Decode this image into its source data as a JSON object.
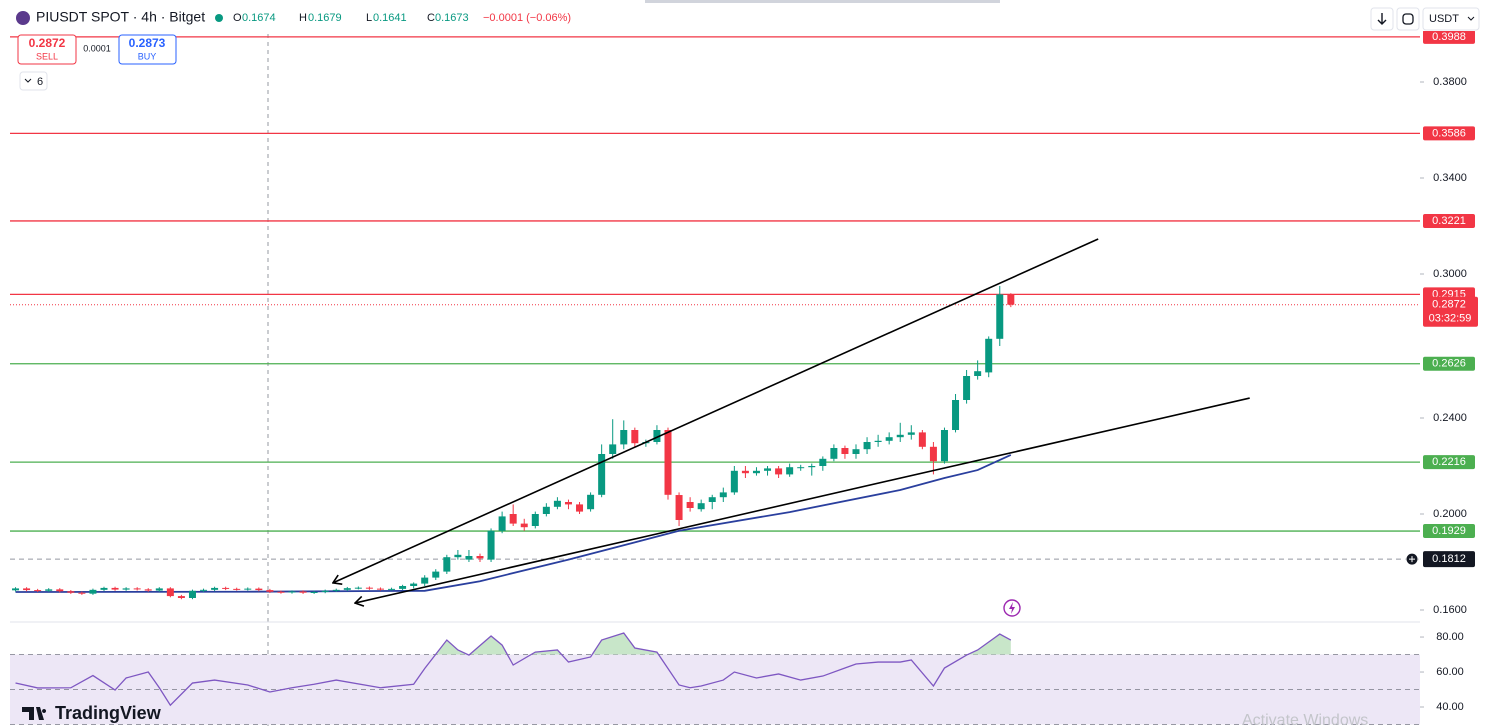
{
  "header": {
    "symbol": "PIUSDT SPOT · 4h · Bitget",
    "o_label": "O",
    "open": 0.1674,
    "h_label": "H",
    "high": 0.1679,
    "l_label": "L",
    "low": 0.1641,
    "c_label": "C",
    "close": 0.1673,
    "change": "−0.0001 (−0.06%)"
  },
  "trade": {
    "sell_price": 0.2872,
    "sell": "SELL",
    "spread": 0.0001,
    "buy_price": 0.2873,
    "buy": "BUY"
  },
  "indicators_count": 6,
  "currency": "USDT",
  "brand": "TradingView",
  "watermark": "Activate Windows",
  "chart_data": [
    {
      "type": "candlestick",
      "open": [
        0.1682,
        0.169,
        0.1683,
        0.168,
        0.1686,
        0.1678,
        0.1672,
        0.1668,
        0.1684,
        0.1692,
        0.1685,
        0.169,
        0.1686,
        0.1681,
        0.169,
        0.1658,
        0.165,
        0.168,
        0.1684,
        0.1692,
        0.1688,
        0.1686,
        0.1689,
        0.1683,
        0.1676,
        0.1673,
        0.1677,
        0.1672,
        0.1675,
        0.168,
        0.1684,
        0.1691,
        0.1693,
        0.1689,
        0.1686,
        0.1688,
        0.17,
        0.171,
        0.1735,
        0.176,
        0.182,
        0.181,
        0.1825,
        0.181,
        0.193,
        0.2,
        0.196,
        0.195,
        0.2,
        0.203,
        0.205,
        0.204,
        0.202,
        0.208,
        0.225,
        0.229,
        0.235,
        0.2295,
        0.23,
        0.235,
        0.2079,
        0.205,
        0.202,
        0.205,
        0.207,
        0.209,
        0.218,
        0.217,
        0.218,
        0.219,
        0.2165,
        0.2195,
        0.2195,
        0.22,
        0.223,
        0.2275,
        0.225,
        0.227,
        0.23,
        0.2305,
        0.232,
        0.233,
        0.234,
        0.228,
        0.222,
        0.235,
        0.2475,
        0.2575,
        0.259,
        0.273,
        0.2915
      ],
      "high": [
        0.1695,
        0.1695,
        0.1688,
        0.1691,
        0.1691,
        0.1683,
        0.1677,
        0.1689,
        0.1697,
        0.1697,
        0.1695,
        0.1695,
        0.1691,
        0.1695,
        0.1695,
        0.1663,
        0.1685,
        0.1689,
        0.1697,
        0.1697,
        0.1693,
        0.1694,
        0.1694,
        0.1688,
        0.1681,
        0.1682,
        0.1682,
        0.168,
        0.1685,
        0.1689,
        0.1696,
        0.1698,
        0.1698,
        0.1694,
        0.1693,
        0.1705,
        0.1715,
        0.1745,
        0.177,
        0.183,
        0.185,
        0.185,
        0.1835,
        0.194,
        0.201,
        0.204,
        0.198,
        0.201,
        0.2045,
        0.207,
        0.206,
        0.205,
        0.209,
        0.229,
        0.2395,
        0.239,
        0.236,
        0.231,
        0.237,
        0.236,
        0.209,
        0.207,
        0.206,
        0.208,
        0.211,
        0.22,
        0.22,
        0.2195,
        0.22,
        0.22,
        0.221,
        0.2205,
        0.221,
        0.224,
        0.229,
        0.2285,
        0.229,
        0.232,
        0.233,
        0.234,
        0.238,
        0.237,
        0.235,
        0.23,
        0.236,
        0.25,
        0.26,
        0.264,
        0.274,
        0.295,
        0.292
      ],
      "low": [
        0.1677,
        0.1678,
        0.1675,
        0.1675,
        0.1673,
        0.1667,
        0.1663,
        0.1663,
        0.1679,
        0.168,
        0.168,
        0.1681,
        0.1676,
        0.1676,
        0.1653,
        0.1645,
        0.1645,
        0.1675,
        0.1679,
        0.1683,
        0.1681,
        0.1681,
        0.1678,
        0.1671,
        0.1668,
        0.1668,
        0.1667,
        0.1667,
        0.167,
        0.1675,
        0.1679,
        0.1686,
        0.1684,
        0.1681,
        0.1681,
        0.1683,
        0.169,
        0.17,
        0.1725,
        0.175,
        0.181,
        0.18,
        0.18,
        0.18,
        0.192,
        0.195,
        0.193,
        0.194,
        0.199,
        0.202,
        0.202,
        0.2,
        0.201,
        0.207,
        0.223,
        0.227,
        0.228,
        0.228,
        0.229,
        0.206,
        0.195,
        0.201,
        0.201,
        0.202,
        0.205,
        0.208,
        0.215,
        0.216,
        0.216,
        0.215,
        0.2155,
        0.218,
        0.216,
        0.218,
        0.222,
        0.223,
        0.223,
        0.225,
        0.228,
        0.229,
        0.23,
        0.231,
        0.227,
        0.2165,
        0.221,
        0.234,
        0.246,
        0.256,
        0.257,
        0.27,
        0.2862
      ],
      "close": [
        0.169,
        0.1683,
        0.168,
        0.1686,
        0.1678,
        0.1672,
        0.1668,
        0.1684,
        0.1692,
        0.1685,
        0.169,
        0.1686,
        0.1681,
        0.169,
        0.1658,
        0.165,
        0.168,
        0.1684,
        0.1692,
        0.1688,
        0.1686,
        0.1689,
        0.1683,
        0.1676,
        0.1673,
        0.1677,
        0.1672,
        0.1675,
        0.168,
        0.1684,
        0.1691,
        0.1693,
        0.1689,
        0.1686,
        0.1688,
        0.17,
        0.171,
        0.1735,
        0.176,
        0.182,
        0.183,
        0.1825,
        0.1815,
        0.193,
        0.199,
        0.196,
        0.1945,
        0.2,
        0.203,
        0.2055,
        0.204,
        0.201,
        0.208,
        0.225,
        0.229,
        0.235,
        0.2295,
        0.23,
        0.235,
        0.208,
        0.1975,
        0.2025,
        0.2045,
        0.207,
        0.209,
        0.218,
        0.217,
        0.218,
        0.219,
        0.2165,
        0.2195,
        0.2195,
        0.22,
        0.223,
        0.2275,
        0.225,
        0.227,
        0.23,
        0.2305,
        0.232,
        0.233,
        0.234,
        0.228,
        0.222,
        0.235,
        0.2475,
        0.2575,
        0.2595,
        0.273,
        0.2915,
        0.2872
      ],
      "up_color": "#089981",
      "down_color": "#f23645",
      "xlim": [
        -0.5,
        127
      ],
      "ylim": [
        0.155,
        0.4
      ],
      "yticks": [
        {
          "value": 0.38,
          "label": "0.3800"
        },
        {
          "value": 0.34,
          "label": "0.3400"
        },
        {
          "value": 0.3,
          "label": "0.3000"
        },
        {
          "value": 0.24,
          "label": "0.2400"
        },
        {
          "value": 0.2,
          "label": "0.2000"
        },
        {
          "value": 0.16,
          "label": "0.1600"
        }
      ],
      "ma": {
        "color": "#2a3f9e",
        "x": [
          0,
          20,
          37,
          42,
          50,
          60,
          70,
          80,
          84,
          87,
          90
        ],
        "values": [
          0.1675,
          0.1676,
          0.168,
          0.172,
          0.181,
          0.193,
          0.2008,
          0.21,
          0.215,
          0.2183,
          0.2246
        ]
      },
      "trendlines": [
        {
          "color": "#000000",
          "x": [
            28.7,
            97.9
          ],
          "values": [
            0.1713,
            0.3146
          ]
        },
        {
          "color": "#000000",
          "x": [
            30.7,
            111.6
          ],
          "values": [
            0.1629,
            0.2483
          ]
        }
      ],
      "levels": [
        {
          "value": 0.3988,
          "color": "#f23645"
        },
        {
          "value": 0.3586,
          "color": "#f23645"
        },
        {
          "value": 0.3221,
          "color": "#f23645"
        },
        {
          "value": 0.2915,
          "color": "#f23645"
        },
        {
          "value": 0.2626,
          "color": "#4caf50"
        },
        {
          "value": 0.2216,
          "color": "#4caf50"
        },
        {
          "value": 0.1929,
          "color": "#4caf50"
        }
      ],
      "alert_level": 0.1812,
      "last_price": 0.2872,
      "countdown": "03:32:59"
    },
    {
      "type": "line",
      "color": "#7e57c2",
      "x": [
        0,
        2,
        5,
        7,
        9,
        10,
        12,
        13,
        14,
        16,
        18,
        21,
        23,
        25,
        27,
        29,
        33,
        36,
        37,
        39,
        40,
        41,
        43,
        44,
        45,
        47,
        49,
        50,
        52,
        53,
        55,
        56,
        58,
        60,
        61,
        62,
        64,
        65,
        67,
        69,
        71,
        73,
        75,
        76,
        78,
        80,
        81,
        83,
        84,
        86,
        87,
        89,
        90
      ],
      "values": [
        53.7,
        50.9,
        51,
        58,
        49.7,
        56.6,
        60,
        51,
        41,
        53.7,
        55.4,
        52.6,
        48.6,
        51,
        53,
        55.4,
        51,
        53,
        62,
        78.3,
        72.6,
        69.7,
        80.6,
        75.4,
        64,
        71.4,
        72.6,
        65.7,
        68.6,
        78.3,
        82.3,
        73.7,
        71.4,
        52.6,
        51,
        52,
        55.4,
        60,
        56.6,
        58.9,
        55.4,
        57.7,
        62.3,
        64.6,
        65.7,
        65.7,
        66.9,
        52,
        62.3,
        69.7,
        72.6,
        81.7,
        78.3
      ],
      "xlim": [
        -0.5,
        127
      ],
      "ylim": [
        28,
        88.6
      ],
      "yticks": [
        {
          "value": 80,
          "label": "80.00"
        },
        {
          "value": 60,
          "label": "60.00"
        },
        {
          "value": 40,
          "label": "40.00"
        }
      ],
      "bands": [
        70,
        50,
        30
      ],
      "band_fill": "#ede7f6",
      "overbought_fill": "#c8e6c9"
    }
  ]
}
